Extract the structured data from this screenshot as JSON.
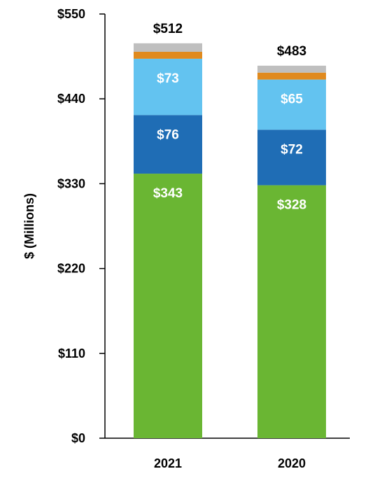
{
  "chart_data": {
    "type": "bar",
    "stacked": true,
    "title": "",
    "xlabel": "",
    "ylabel": "$ (Millions)",
    "ylim": [
      0,
      550
    ],
    "yticks": [
      0,
      110,
      220,
      330,
      440,
      550
    ],
    "ytick_labels": [
      "$0",
      "$110",
      "$220",
      "$330",
      "$440",
      "$550"
    ],
    "categories": [
      "2021",
      "2020"
    ],
    "series": [
      {
        "values": [
          343,
          328
        ],
        "labels": [
          "$343",
          "$328"
        ],
        "color": "#6ab633"
      },
      {
        "values": [
          76,
          72
        ],
        "labels": [
          "$76",
          "$72"
        ],
        "color": "#1f6db5"
      },
      {
        "values": [
          73,
          65
        ],
        "labels": [
          "$73",
          "$65"
        ],
        "color": "#63c3f0"
      },
      {
        "values": [
          9,
          9
        ],
        "labels": [
          "",
          ""
        ],
        "color": "#e08a1e"
      },
      {
        "values": [
          11,
          9
        ],
        "labels": [
          "",
          ""
        ],
        "color": "#bfbfbf"
      }
    ],
    "totals": [
      512,
      483
    ],
    "total_labels": [
      "$512",
      "$483"
    ],
    "grid": false,
    "legend": "none"
  }
}
